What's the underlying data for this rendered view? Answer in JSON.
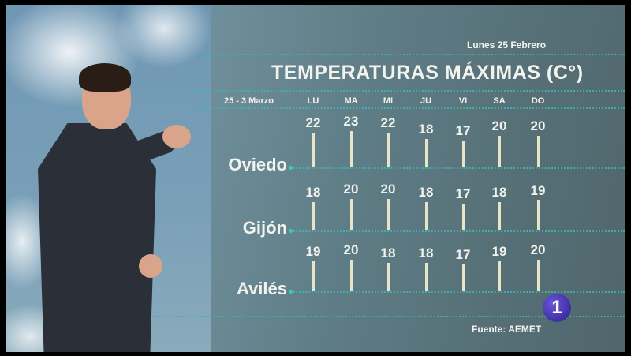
{
  "header": {
    "date": "Lunes 25 Febrero",
    "title": "TEMPERATURAS MÁXIMAS (C°)",
    "range": "25 - 3 Marzo"
  },
  "days": [
    "LU",
    "MA",
    "MI",
    "JU",
    "VI",
    "SA",
    "DO"
  ],
  "cities": [
    {
      "name": "Oviedo",
      "values": [
        22,
        23,
        22,
        18,
        17,
        20,
        20
      ]
    },
    {
      "name": "Gijón",
      "values": [
        18,
        20,
        20,
        18,
        17,
        18,
        19
      ]
    },
    {
      "name": "Avilés",
      "values": [
        19,
        20,
        18,
        18,
        17,
        19,
        20
      ]
    }
  ],
  "footer": {
    "source": "Fuente: AEMET",
    "channel_logo": "1"
  },
  "colors": {
    "accent": "#3fb6b0",
    "bars": "#e8e4c8",
    "logo": "#3a2aa8"
  }
}
